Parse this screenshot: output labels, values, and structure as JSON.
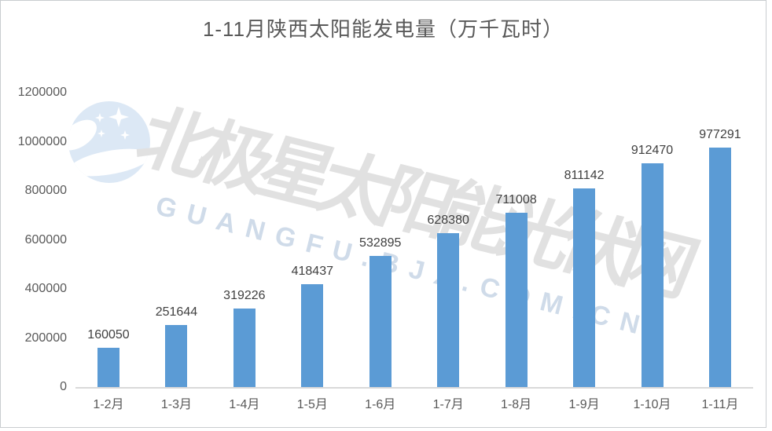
{
  "title": {
    "text": "1-11月陕西太阳能发电量（万千瓦时）",
    "color": "#595959"
  },
  "watermark": {
    "logo_name": "bjx-moon-stars-logo",
    "cn_text": "北极星太阳能光伏网",
    "latin_text": "GUANGFU.BJX.COM.CN",
    "logo_color": "#dce8f5",
    "logo_inner_color": "#ffffff",
    "cn_color": "#e1e1e1",
    "latin_color": "#cfdbe9"
  },
  "chart_data": {
    "type": "bar",
    "title": "1-11月陕西太阳能发电量（万千瓦时）",
    "categories": [
      "1-2月",
      "1-3月",
      "1-4月",
      "1-5月",
      "1-6月",
      "1-7月",
      "1-8月",
      "1-9月",
      "1-10月",
      "1-11月"
    ],
    "values": [
      160050,
      251644,
      319226,
      418437,
      532895,
      628380,
      711008,
      811142,
      912470,
      977291
    ],
    "ylim": [
      0,
      1200000
    ],
    "yticks": [
      0,
      200000,
      400000,
      600000,
      800000,
      1000000,
      1200000
    ],
    "grid": false,
    "legend": "none",
    "value_labels_shown": true,
    "bar_color": "#5b9bd5",
    "value_label_color": "#404040",
    "axis_label_color": "#595959",
    "baseline_color": "#d9d9d9"
  }
}
